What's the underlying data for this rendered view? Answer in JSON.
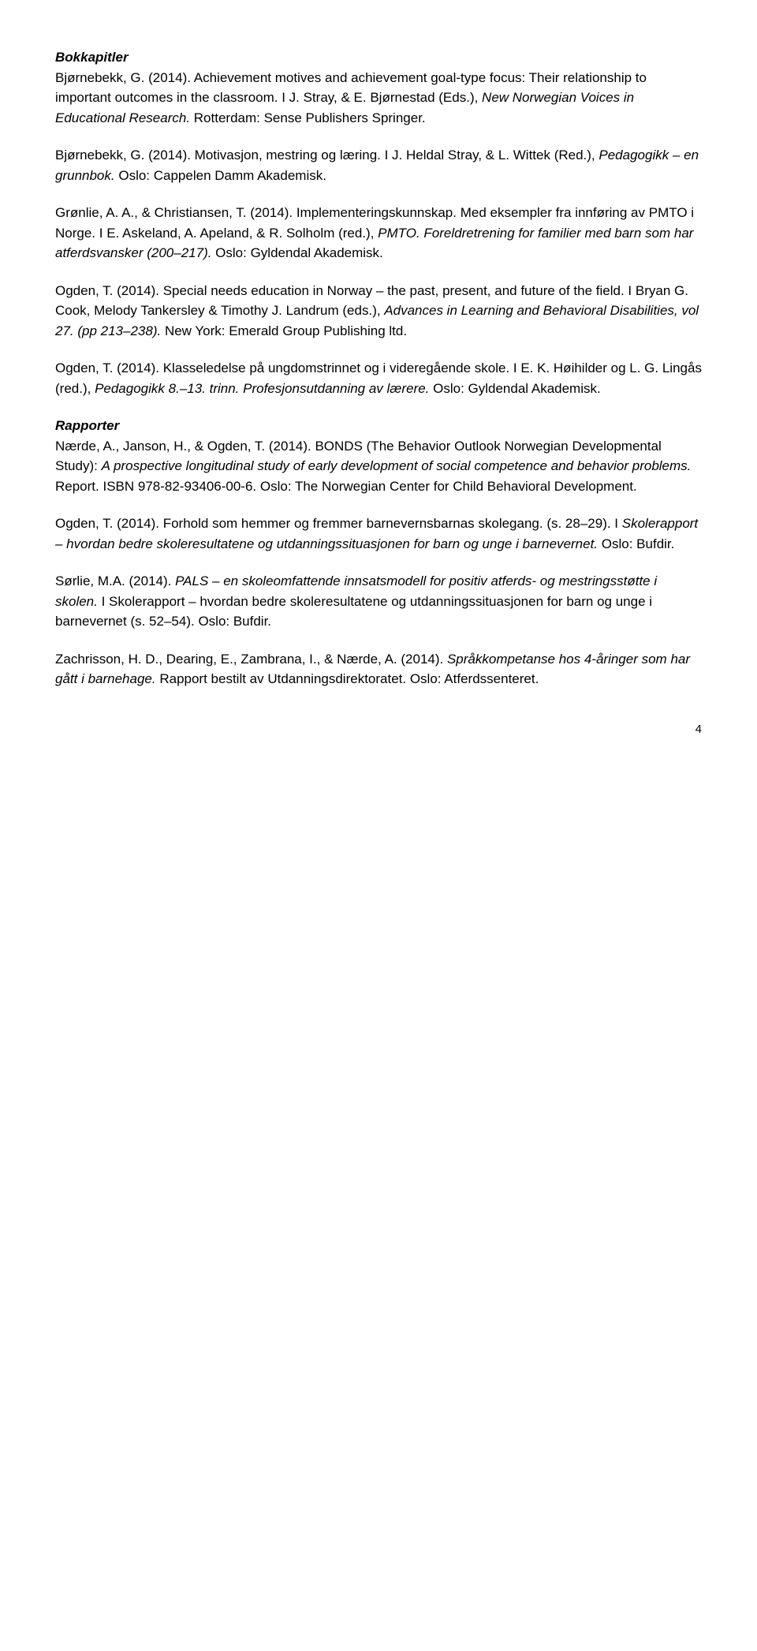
{
  "sections": {
    "bokkapitler": {
      "heading": "Bokkapitler",
      "paragraphs": [
        {
          "runs": [
            {
              "text": "Bjørnebekk, G. (2014). Achievement motives and achievement goal-type focus: Their relationship to important outcomes in the classroom. I J. Stray, & E. Bjørnestad (Eds.), "
            },
            {
              "text": "New Norwegian Voices in Educational Research.",
              "style": "italic"
            },
            {
              "text": " Rotterdam: Sense Publishers Springer."
            }
          ]
        },
        {
          "runs": [
            {
              "text": "Bjørnebekk, G. (2014). Motivasjon, mestring og læring. I J. Heldal Stray, & L. Wittek (Red.), "
            },
            {
              "text": "Pedagogikk – en grunnbok.",
              "style": "italic"
            },
            {
              "text": " Oslo: Cappelen Damm Akademisk."
            }
          ]
        },
        {
          "runs": [
            {
              "text": "Grønlie, A. A., & Christiansen, T. (2014). Implementeringskunnskap. Med eksempler fra innføring av PMTO i Norge. I E. Askeland, A. Apeland, & R. Solholm (red.), "
            },
            {
              "text": "PMTO. Foreldretrening for familier med barn som har atferdsvansker (200–217).",
              "style": "italic"
            },
            {
              "text": " Oslo: Gyldendal Akademisk."
            }
          ]
        },
        {
          "runs": [
            {
              "text": "Ogden, T. (2014). Special needs education in Norway – the past, present, and future of the field. I Bryan G. Cook, Melody Tankersley & Timothy J. Landrum (eds.), "
            },
            {
              "text": "Advances in Learning and Behavioral Disabilities, vol 27. (pp 213–238).",
              "style": "italic"
            },
            {
              "text": " New York: Emerald Group Publishing ltd."
            }
          ]
        },
        {
          "runs": [
            {
              "text": "Ogden, T. (2014). Klasseledelse på ungdomstrinnet og i videregående skole. I E. K. Høihilder og L. G. Lingås (red.), "
            },
            {
              "text": "Pedagogikk 8.–13. trinn. Profesjonsutdanning av lærere.",
              "style": "italic"
            },
            {
              "text": " Oslo: Gyldendal Akademisk."
            }
          ]
        }
      ]
    },
    "rapporter": {
      "heading": "Rapporter",
      "paragraphs": [
        {
          "runs": [
            {
              "text": "Nærde, A., Janson, H., & Ogden, T. (2014). BONDS (The Behavior Outlook Norwegian Developmental Study): "
            },
            {
              "text": "A prospective longitudinal study of early development of social competence and behavior problems.",
              "style": "italic"
            },
            {
              "text": " Report. ISBN 978-82-93406-00-6. Oslo: The Norwegian Center for Child Behavioral Development."
            }
          ]
        },
        {
          "runs": [
            {
              "text": "Ogden, T. (2014). Forhold som hemmer og fremmer barnevernsbarnas skolegang. (s. 28–29). I "
            },
            {
              "text": "Skolerapport – hvordan bedre skoleresultatene og utdanningssituasjonen for barn og unge i barnevernet.",
              "style": "italic"
            },
            {
              "text": " Oslo: Bufdir."
            }
          ]
        },
        {
          "runs": [
            {
              "text": "Sørlie, M.A. (2014). "
            },
            {
              "text": "PALS – en skoleomfattende innsatsmodell for positiv atferds- og mestringsstøtte i skolen.",
              "style": "italic"
            },
            {
              "text": " I Skolerapport – hvordan bedre skoleresultatene og utdanningssituasjonen for barn og unge i barnevernet (s. 52–54). Oslo: Bufdir."
            }
          ]
        },
        {
          "runs": [
            {
              "text": "Zachrisson, H. D., Dearing, E., Zambrana, I., & Nærde, A. (2014). "
            },
            {
              "text": "Språkkompetanse hos 4-åringer som har gått i barnehage.",
              "style": "italic"
            },
            {
              "text": " Rapport bestilt av Utdanningsdirektoratet. Oslo: Atferdssenteret."
            }
          ]
        }
      ]
    }
  },
  "pageNumber": "4"
}
